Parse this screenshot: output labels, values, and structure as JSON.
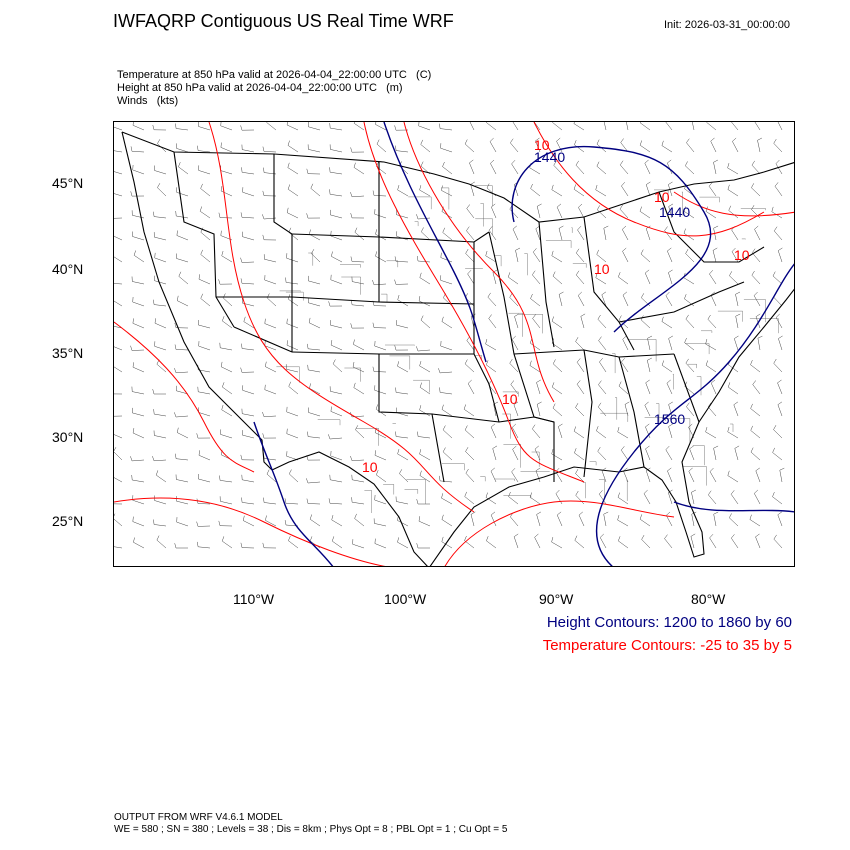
{
  "header": {
    "title": "IWFAQRP Contiguous US Real Time WRF",
    "init": "Init: 2026-03-31_00:00:00"
  },
  "fields": [
    {
      "label": "Temperature at 850 hPa valid at 2026-04-04_22:00:00 UTC",
      "unit": "(C)"
    },
    {
      "label": "Height at 850 hPa valid at 2026-04-04_22:00:00 UTC",
      "unit": "(m)"
    },
    {
      "label": "Winds",
      "unit": "(kts)"
    }
  ],
  "axes": {
    "lat_labels": [
      "45°N",
      "40°N",
      "35°N",
      "30°N",
      "25°N"
    ],
    "lon_labels": [
      "110°W",
      "100°W",
      "90°W",
      "80°W"
    ]
  },
  "map": {
    "contour_labels": [
      {
        "text": "10",
        "kind": "temperature"
      },
      {
        "text": "10",
        "kind": "temperature"
      },
      {
        "text": "10",
        "kind": "temperature"
      },
      {
        "text": "10",
        "kind": "temperature"
      },
      {
        "text": "10",
        "kind": "temperature"
      },
      {
        "text": "10",
        "kind": "temperature"
      },
      {
        "text": "1440",
        "kind": "height"
      },
      {
        "text": "1440",
        "kind": "height"
      },
      {
        "text": "1560",
        "kind": "height"
      }
    ],
    "colors": {
      "height": "#000080",
      "temperature": "#ff0000",
      "border": "#000000",
      "county": "#555555",
      "barb": "#444444"
    }
  },
  "legend": {
    "height": "Height Contours: 1200 to 1860 by 60",
    "temperature": "Temperature Contours: -25 to 35 by 5"
  },
  "footer": {
    "line1": "OUTPUT FROM WRF V4.6.1 MODEL",
    "line2": "WE = 580 ; SN = 380 ; Levels = 38 ; Dis = 8km ; Phys Opt = 8 ; PBL Opt = 1 ; Cu Opt = 5"
  }
}
